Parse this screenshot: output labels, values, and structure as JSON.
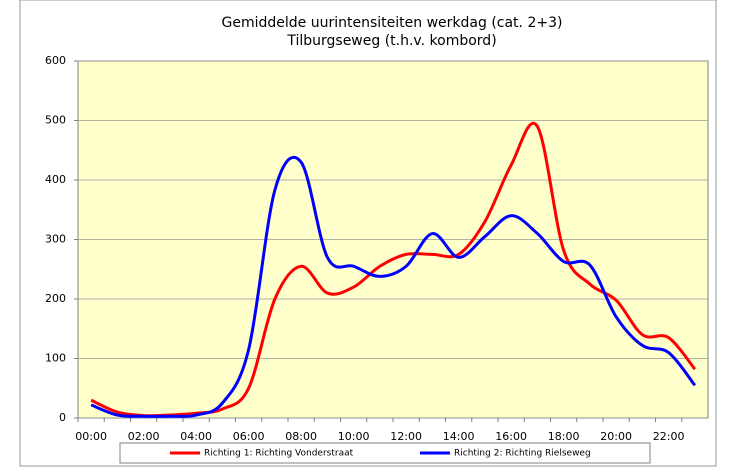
{
  "chart_data": {
    "type": "line",
    "title": "Gemiddelde uurintensiteiten werkdag (cat. 2+3)",
    "subtitle": "Tilburgseweg (t.h.v. kombord)",
    "categories": [
      "00:00",
      null,
      "02:00",
      null,
      "04:00",
      null,
      "06:00",
      null,
      "08:00",
      null,
      "10:00",
      null,
      "12:00",
      null,
      "14:00",
      null,
      "16:00",
      null,
      "18:00",
      null,
      "20:00",
      null,
      "22:00",
      null
    ],
    "series": [
      {
        "name": "Richting 1: Richting Vonderstraat",
        "color": "#ff0000",
        "values": [
          30,
          10,
          4,
          5,
          8,
          15,
          50,
          200,
          255,
          210,
          220,
          255,
          275,
          275,
          275,
          330,
          425,
          490,
          282,
          225,
          198,
          140,
          135,
          82
        ]
      },
      {
        "name": "Richting 2: Richting Rielseweg",
        "color": "#0000ff",
        "values": [
          22,
          5,
          3,
          3,
          5,
          25,
          115,
          383,
          430,
          270,
          255,
          238,
          255,
          310,
          270,
          305,
          340,
          310,
          263,
          257,
          170,
          122,
          110,
          55
        ]
      }
    ],
    "ylim": [
      0,
      600
    ],
    "yticks": [
      0,
      100,
      200,
      300,
      400,
      500,
      600
    ],
    "grid": true,
    "plot_background": "#ffffcc",
    "legend": "bottom"
  }
}
